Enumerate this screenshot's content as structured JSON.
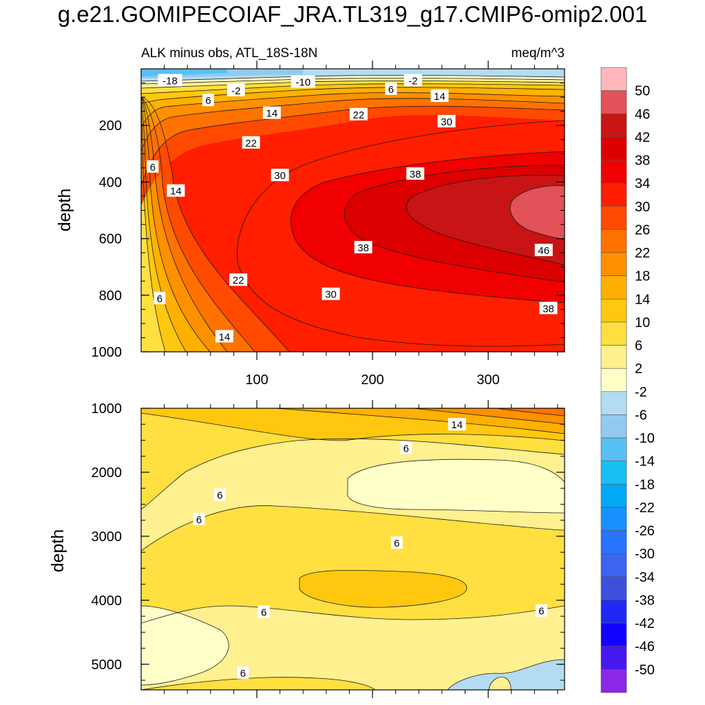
{
  "title": "g.e21.GOMIPECOIAF_JRA.TL319_g17.CMIP6-omip2.001",
  "chart_data": [
    {
      "type": "contour",
      "panel": "upper",
      "subtitle_left": "ALK minus obs, ATL_18S-18N",
      "subtitle_right": "meq/m^3",
      "ylabel": "depth",
      "xlabel": "",
      "xlim": [
        0,
        366
      ],
      "ylim": [
        1000,
        0
      ],
      "x_ticks": [
        100,
        200,
        300
      ],
      "y_ticks": [
        200,
        400,
        600,
        800,
        1000
      ],
      "contour_labels": [
        {
          "text": "-18",
          "x": 25,
          "y": 40
        },
        {
          "text": "-2",
          "x": 82,
          "y": 75
        },
        {
          "text": "6",
          "x": 58,
          "y": 110
        },
        {
          "text": "-10",
          "x": 140,
          "y": 45
        },
        {
          "text": "6",
          "x": 216,
          "y": 70
        },
        {
          "text": "-2",
          "x": 235,
          "y": 40
        },
        {
          "text": "14",
          "x": 258,
          "y": 95
        },
        {
          "text": "14",
          "x": 113,
          "y": 155
        },
        {
          "text": "22",
          "x": 188,
          "y": 160
        },
        {
          "text": "30",
          "x": 264,
          "y": 185
        },
        {
          "text": "22",
          "x": 95,
          "y": 260
        },
        {
          "text": "6",
          "x": 10,
          "y": 345
        },
        {
          "text": "30",
          "x": 120,
          "y": 375
        },
        {
          "text": "38",
          "x": 237,
          "y": 370
        },
        {
          "text": "14",
          "x": 30,
          "y": 430
        },
        {
          "text": "38",
          "x": 192,
          "y": 630
        },
        {
          "text": "46",
          "x": 348,
          "y": 640
        },
        {
          "text": "22",
          "x": 84,
          "y": 745
        },
        {
          "text": "30",
          "x": 164,
          "y": 795
        },
        {
          "text": "6",
          "x": 16,
          "y": 810
        },
        {
          "text": "38",
          "x": 352,
          "y": 845
        },
        {
          "text": "14",
          "x": 72,
          "y": 945
        }
      ]
    },
    {
      "type": "contour",
      "panel": "lower",
      "ylabel": "depth",
      "xlim": [
        0,
        366
      ],
      "ylim": [
        5400,
        1000
      ],
      "y_ticks": [
        1000,
        2000,
        3000,
        4000,
        5000
      ],
      "contour_labels": [
        {
          "text": "14",
          "x": 273,
          "y": 1250
        },
        {
          "text": "6",
          "x": 229,
          "y": 1620
        },
        {
          "text": "6",
          "x": 68,
          "y": 2350
        },
        {
          "text": "6",
          "x": 50,
          "y": 2730
        },
        {
          "text": "6",
          "x": 221,
          "y": 3100
        },
        {
          "text": "6",
          "x": 106,
          "y": 4180
        },
        {
          "text": "6",
          "x": 346,
          "y": 4160
        },
        {
          "text": "6",
          "x": 88,
          "y": 5130
        }
      ]
    }
  ],
  "colorbar": {
    "labels": [
      "50",
      "46",
      "42",
      "38",
      "34",
      "30",
      "26",
      "22",
      "18",
      "14",
      "10",
      "6",
      "2",
      "-2",
      "-6",
      "-10",
      "-14",
      "-18",
      "-22",
      "-26",
      "-30",
      "-34",
      "-38",
      "-42",
      "-46",
      "-50"
    ],
    "colors": [
      "#ffb6ba",
      "#e25258",
      "#c81414",
      "#dc0000",
      "#f00000",
      "#ff1e00",
      "#ff4a00",
      "#ff7200",
      "#ff9000",
      "#ffb000",
      "#ffc80e",
      "#ffe040",
      "#fff090",
      "#ffffc8",
      "#b3dcf2",
      "#92caef",
      "#58c0f2",
      "#18bff5",
      "#00a8f5",
      "#1890ff",
      "#2873ff",
      "#3c64f0",
      "#3c50dc",
      "#2028f5",
      "#1000ff",
      "#4818f0",
      "#8a28e6"
    ]
  },
  "colors": {
    "axis": "#000000",
    "contour_line": "#1a1a1a"
  }
}
